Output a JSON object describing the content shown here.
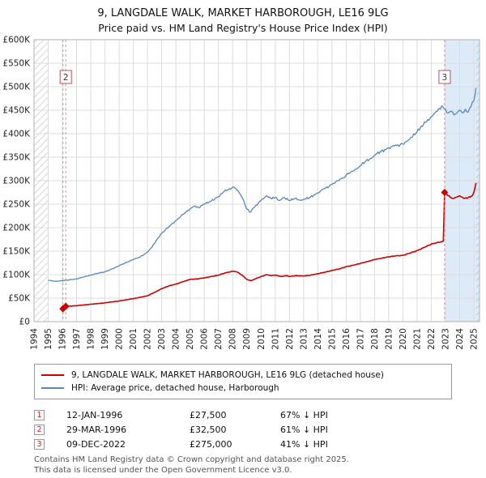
{
  "header": {
    "title": "9, LANGDALE WALK, MARKET HARBOROUGH, LE16 9LG",
    "subtitle": "Price paid vs. HM Land Registry's House Price Index (HPI)"
  },
  "chart_data": {
    "type": "line",
    "x_range": [
      1994,
      2025.4
    ],
    "y_range": [
      0,
      600000
    ],
    "x_ticks": [
      1994,
      1995,
      1996,
      1997,
      1998,
      1999,
      2000,
      2001,
      2002,
      2003,
      2004,
      2005,
      2006,
      2007,
      2008,
      2009,
      2010,
      2011,
      2012,
      2013,
      2014,
      2015,
      2016,
      2017,
      2018,
      2019,
      2020,
      2021,
      2022,
      2023,
      2024,
      2025
    ],
    "y_ticks": [
      {
        "v": 0,
        "label": "£0"
      },
      {
        "v": 50000,
        "label": "£50K"
      },
      {
        "v": 100000,
        "label": "£100K"
      },
      {
        "v": 150000,
        "label": "£150K"
      },
      {
        "v": 200000,
        "label": "£200K"
      },
      {
        "v": 250000,
        "label": "£250K"
      },
      {
        "v": 300000,
        "label": "£300K"
      },
      {
        "v": 350000,
        "label": "£350K"
      },
      {
        "v": 400000,
        "label": "£400K"
      },
      {
        "v": 450000,
        "label": "£450K"
      },
      {
        "v": 500000,
        "label": "£500K"
      },
      {
        "v": 550000,
        "label": "£550K"
      },
      {
        "v": 600000,
        "label": "£600K"
      }
    ],
    "data_start": 1995.0,
    "data_end": 2025.17,
    "shaded_from": 2022.94,
    "series": [
      {
        "id": "price-line",
        "name": "9, LANGDALE WALK, MARKET HARBOROUGH, LE16 9LG (detached house)",
        "color": "#cc0000",
        "points": [
          [
            1996.04,
            27500
          ],
          [
            1996.24,
            32500
          ],
          [
            1997.0,
            34000
          ],
          [
            1998.0,
            37000
          ],
          [
            1999.0,
            40000
          ],
          [
            2000.0,
            44000
          ],
          [
            2001.0,
            49000
          ],
          [
            2002.0,
            55000
          ],
          [
            2002.6,
            64000
          ],
          [
            2003.0,
            70000
          ],
          [
            2003.5,
            76000
          ],
          [
            2004.0,
            80000
          ],
          [
            2004.5,
            85000
          ],
          [
            2005.0,
            90000
          ],
          [
            2005.5,
            91000
          ],
          [
            2006.0,
            93000
          ],
          [
            2006.5,
            96000
          ],
          [
            2007.0,
            99000
          ],
          [
            2007.5,
            104000
          ],
          [
            2008.0,
            107000
          ],
          [
            2008.3,
            106000
          ],
          [
            2008.7,
            98000
          ],
          [
            2009.0,
            90000
          ],
          [
            2009.3,
            87000
          ],
          [
            2009.6,
            91000
          ],
          [
            2010.0,
            96000
          ],
          [
            2010.4,
            100000
          ],
          [
            2010.7,
            98000
          ],
          [
            2011.0,
            99000
          ],
          [
            2011.4,
            96000
          ],
          [
            2011.8,
            98000
          ],
          [
            2012.0,
            96000
          ],
          [
            2012.5,
            98000
          ],
          [
            2013.0,
            97000
          ],
          [
            2013.5,
            99000
          ],
          [
            2014.0,
            102000
          ],
          [
            2014.5,
            105000
          ],
          [
            2015.0,
            109000
          ],
          [
            2015.5,
            112000
          ],
          [
            2016.0,
            117000
          ],
          [
            2016.5,
            120000
          ],
          [
            2017.0,
            124000
          ],
          [
            2017.5,
            128000
          ],
          [
            2018.0,
            132000
          ],
          [
            2018.5,
            135000
          ],
          [
            2019.0,
            138000
          ],
          [
            2019.5,
            140000
          ],
          [
            2020.0,
            141000
          ],
          [
            2020.5,
            146000
          ],
          [
            2021.0,
            151000
          ],
          [
            2021.5,
            158000
          ],
          [
            2022.0,
            165000
          ],
          [
            2022.5,
            169000
          ],
          [
            2022.85,
            171000
          ],
          [
            2022.94,
            275000
          ],
          [
            2023.2,
            268000
          ],
          [
            2023.5,
            262000
          ],
          [
            2023.8,
            265000
          ],
          [
            2024.0,
            268000
          ],
          [
            2024.3,
            262000
          ],
          [
            2024.6,
            264000
          ],
          [
            2024.9,
            268000
          ],
          [
            2025.0,
            275000
          ],
          [
            2025.15,
            295000
          ]
        ]
      },
      {
        "id": "hpi-line",
        "name": "HPI: Average price, detached house, Harborough",
        "color": "#5588bb",
        "points": [
          [
            1995.0,
            88000
          ],
          [
            1995.5,
            86000
          ],
          [
            1996.0,
            87000
          ],
          [
            1996.5,
            89000
          ],
          [
            1997.0,
            91000
          ],
          [
            1997.5,
            95000
          ],
          [
            1998.0,
            99000
          ],
          [
            1998.5,
            103000
          ],
          [
            1999.0,
            106000
          ],
          [
            1999.5,
            112000
          ],
          [
            2000.0,
            119000
          ],
          [
            2000.5,
            126000
          ],
          [
            2001.0,
            132000
          ],
          [
            2001.5,
            138000
          ],
          [
            2002.0,
            148000
          ],
          [
            2002.3,
            158000
          ],
          [
            2002.6,
            172000
          ],
          [
            2003.0,
            188000
          ],
          [
            2003.5,
            202000
          ],
          [
            2004.0,
            215000
          ],
          [
            2004.5,
            228000
          ],
          [
            2005.0,
            240000
          ],
          [
            2005.3,
            246000
          ],
          [
            2005.6,
            243000
          ],
          [
            2006.0,
            250000
          ],
          [
            2006.5,
            257000
          ],
          [
            2007.0,
            266000
          ],
          [
            2007.4,
            277000
          ],
          [
            2007.8,
            283000
          ],
          [
            2008.1,
            286000
          ],
          [
            2008.4,
            278000
          ],
          [
            2008.7,
            262000
          ],
          [
            2009.0,
            240000
          ],
          [
            2009.2,
            233000
          ],
          [
            2009.5,
            242000
          ],
          [
            2009.8,
            252000
          ],
          [
            2010.0,
            258000
          ],
          [
            2010.4,
            268000
          ],
          [
            2010.7,
            262000
          ],
          [
            2011.0,
            264000
          ],
          [
            2011.3,
            258000
          ],
          [
            2011.6,
            264000
          ],
          [
            2012.0,
            258000
          ],
          [
            2012.4,
            262000
          ],
          [
            2012.8,
            258000
          ],
          [
            2013.0,
            260000
          ],
          [
            2013.4,
            264000
          ],
          [
            2013.8,
            270000
          ],
          [
            2014.0,
            274000
          ],
          [
            2014.4,
            282000
          ],
          [
            2014.8,
            288000
          ],
          [
            2015.0,
            292000
          ],
          [
            2015.4,
            300000
          ],
          [
            2015.8,
            306000
          ],
          [
            2016.0,
            312000
          ],
          [
            2016.4,
            320000
          ],
          [
            2016.8,
            326000
          ],
          [
            2017.0,
            332000
          ],
          [
            2017.4,
            342000
          ],
          [
            2017.8,
            348000
          ],
          [
            2018.0,
            354000
          ],
          [
            2018.4,
            362000
          ],
          [
            2018.8,
            366000
          ],
          [
            2019.0,
            370000
          ],
          [
            2019.4,
            374000
          ],
          [
            2019.8,
            376000
          ],
          [
            2020.0,
            378000
          ],
          [
            2020.3,
            384000
          ],
          [
            2020.6,
            392000
          ],
          [
            2021.0,
            404000
          ],
          [
            2021.3,
            416000
          ],
          [
            2021.6,
            424000
          ],
          [
            2021.9,
            432000
          ],
          [
            2022.2,
            442000
          ],
          [
            2022.5,
            452000
          ],
          [
            2022.8,
            458000
          ],
          [
            2023.0,
            452000
          ],
          [
            2023.2,
            444000
          ],
          [
            2023.4,
            448000
          ],
          [
            2023.6,
            440000
          ],
          [
            2023.8,
            444000
          ],
          [
            2024.0,
            450000
          ],
          [
            2024.2,
            444000
          ],
          [
            2024.4,
            452000
          ],
          [
            2024.6,
            446000
          ],
          [
            2024.8,
            458000
          ],
          [
            2025.0,
            470000
          ],
          [
            2025.15,
            497000
          ]
        ]
      }
    ],
    "sales": [
      {
        "label": "1",
        "x": 1996.04,
        "y": 27500
      },
      {
        "label": "2",
        "x": 1996.24,
        "y": 32500
      },
      {
        "label": "3",
        "x": 2022.94,
        "y": 275000
      }
    ],
    "annotations": [
      {
        "label": "2",
        "x": 1996.24
      },
      {
        "label": "3",
        "x": 2022.94
      }
    ]
  },
  "legend": {
    "items": [
      {
        "label": "9, LANGDALE WALK, MARKET HARBOROUGH, LE16 9LG (detached house)",
        "color": "#cc0000"
      },
      {
        "label": "HPI: Average price, detached house, Harborough",
        "color": "#5588bb"
      }
    ]
  },
  "table": {
    "rows": [
      {
        "n": "1",
        "date": "12-JAN-1996",
        "price": "£27,500",
        "hpi": "67% ↓ HPI"
      },
      {
        "n": "2",
        "date": "29-MAR-1996",
        "price": "£32,500",
        "hpi": "61% ↓ HPI"
      },
      {
        "n": "3",
        "date": "09-DEC-2022",
        "price": "£275,000",
        "hpi": "41% ↓ HPI"
      }
    ]
  },
  "footer": {
    "line1": "Contains HM Land Registry data © Crown copyright and database right 2025.",
    "line2": "This data is licensed under the Open Government Licence v3.0."
  }
}
